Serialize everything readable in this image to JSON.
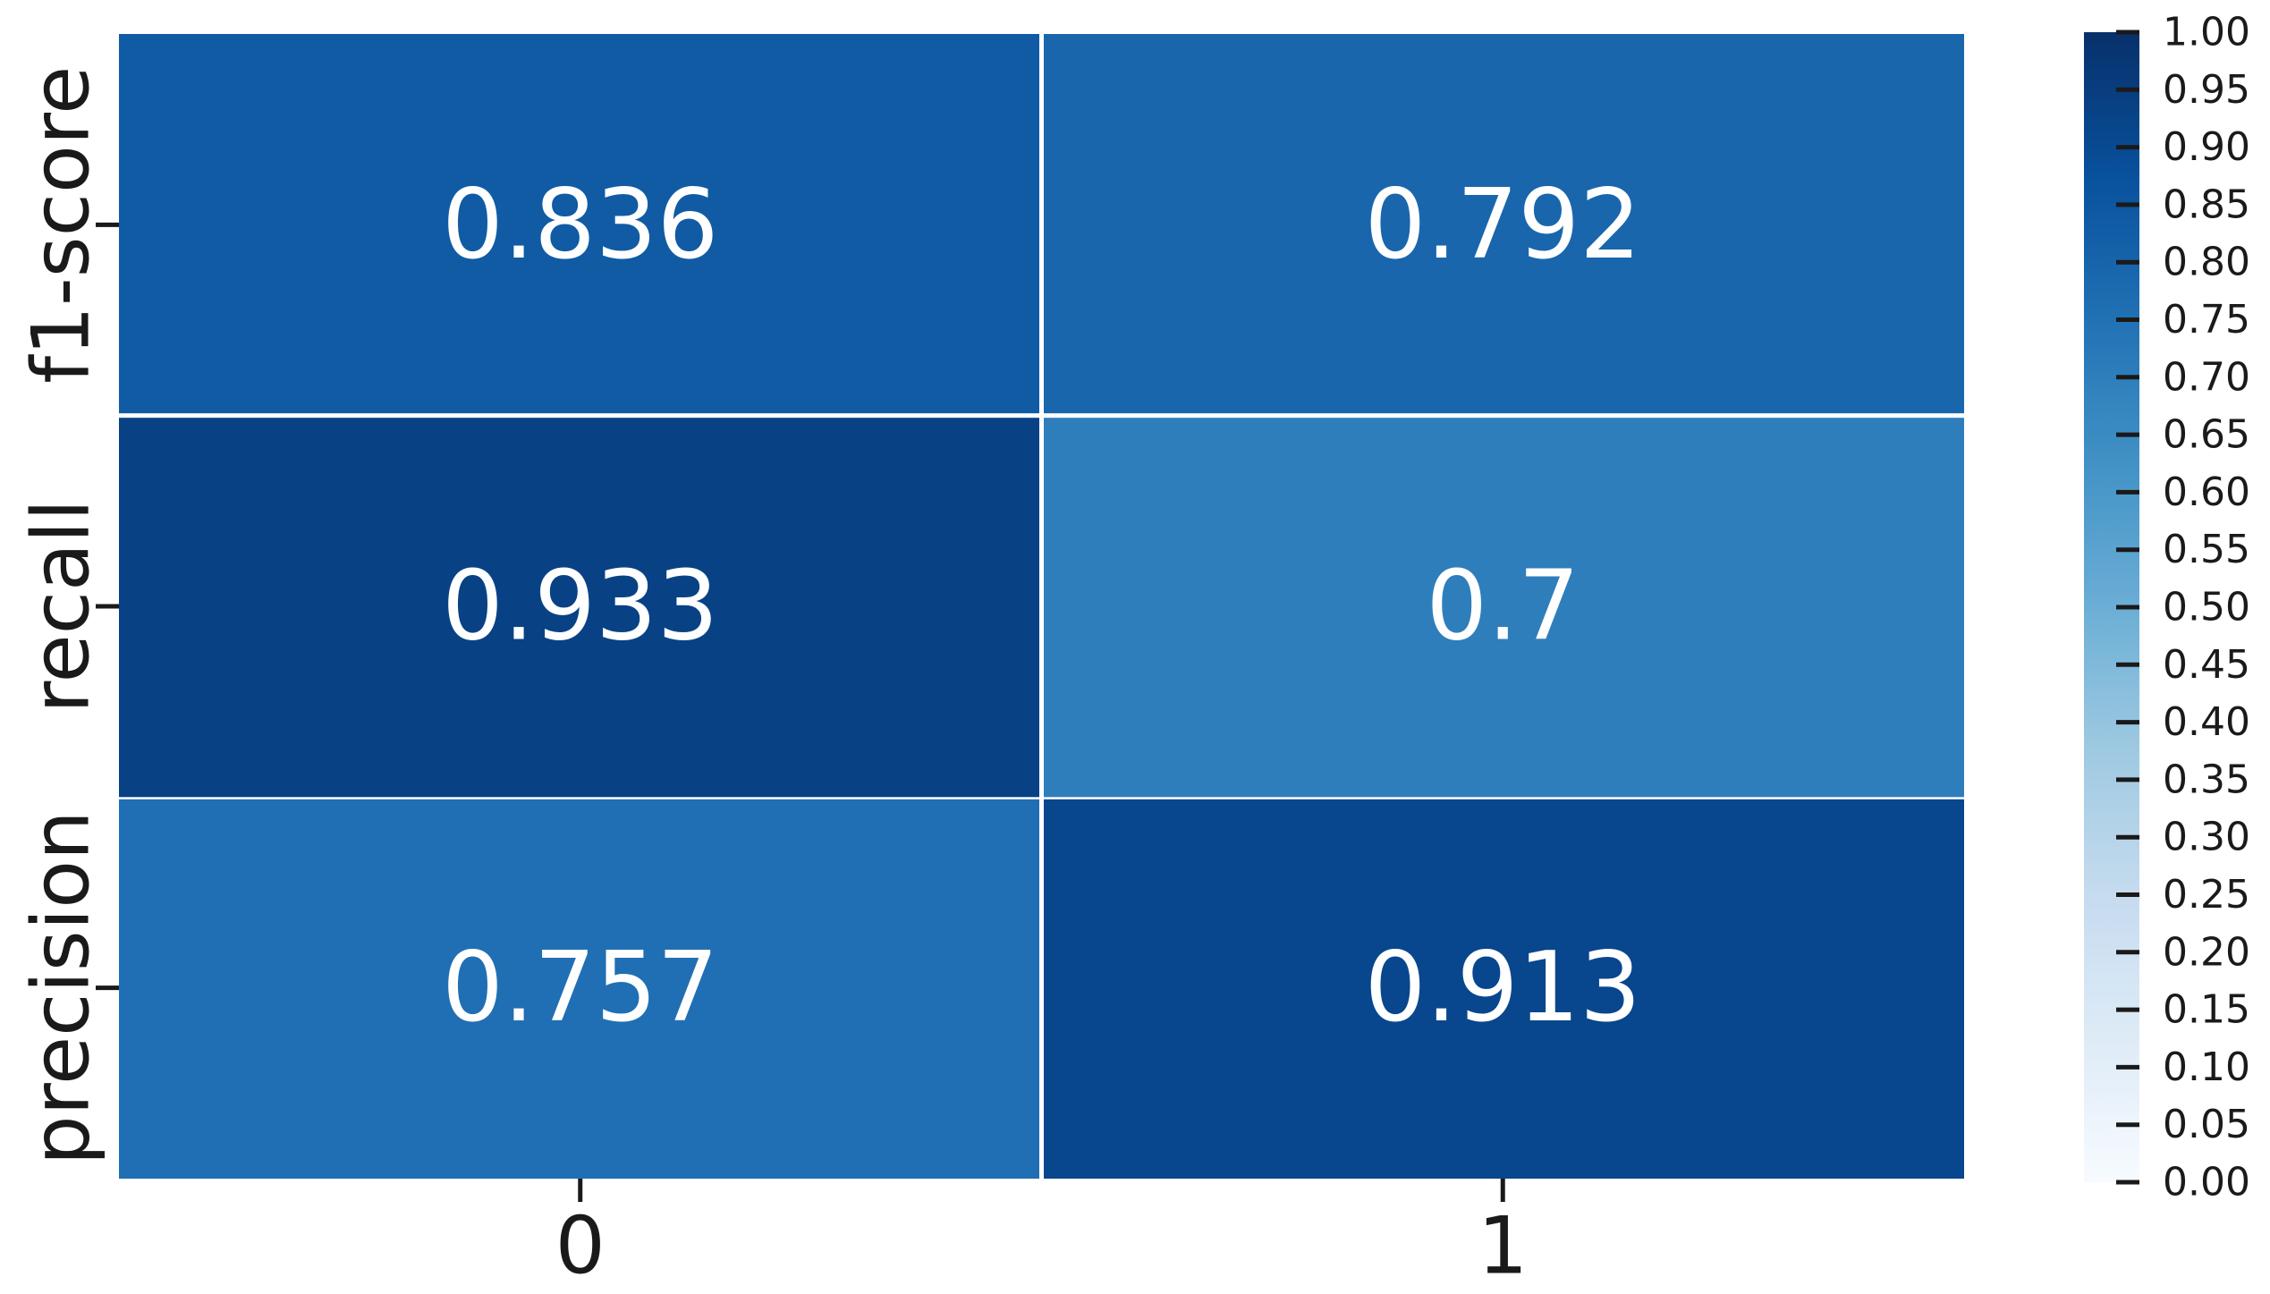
{
  "chart_data": {
    "type": "heatmap",
    "title": "",
    "xlabel": "",
    "ylabel": "",
    "x_categories": [
      "0",
      "1"
    ],
    "y_categories": [
      "f1-score",
      "recall",
      "precision"
    ],
    "values": [
      [
        0.836,
        0.792
      ],
      [
        0.933,
        0.7
      ],
      [
        0.757,
        0.913
      ]
    ],
    "cell_labels": [
      [
        "0.836",
        "0.792"
      ],
      [
        "0.933",
        "0.7"
      ],
      [
        "0.757",
        "0.913"
      ]
    ],
    "colormap": "Blues",
    "vmin": 0,
    "vmax": 1,
    "colorbar_ticks": [
      "0.00",
      "0.05",
      "0.10",
      "0.15",
      "0.20",
      "0.25",
      "0.30",
      "0.35",
      "0.40",
      "0.45",
      "0.50",
      "0.55",
      "0.60",
      "0.65",
      "0.70",
      "0.75",
      "0.80",
      "0.85",
      "0.90",
      "0.95",
      "1.00"
    ],
    "colorbar_tick_values": [
      0,
      0.05,
      0.1,
      0.15,
      0.2,
      0.25,
      0.3,
      0.35,
      0.4,
      0.45,
      0.5,
      0.55,
      0.6,
      0.65,
      0.7,
      0.75,
      0.8,
      0.85,
      0.9,
      0.95,
      1.0
    ],
    "annotation_color": "#ffffff",
    "grid_line_color": "#ffffff",
    "legend": "colorbar-right"
  }
}
